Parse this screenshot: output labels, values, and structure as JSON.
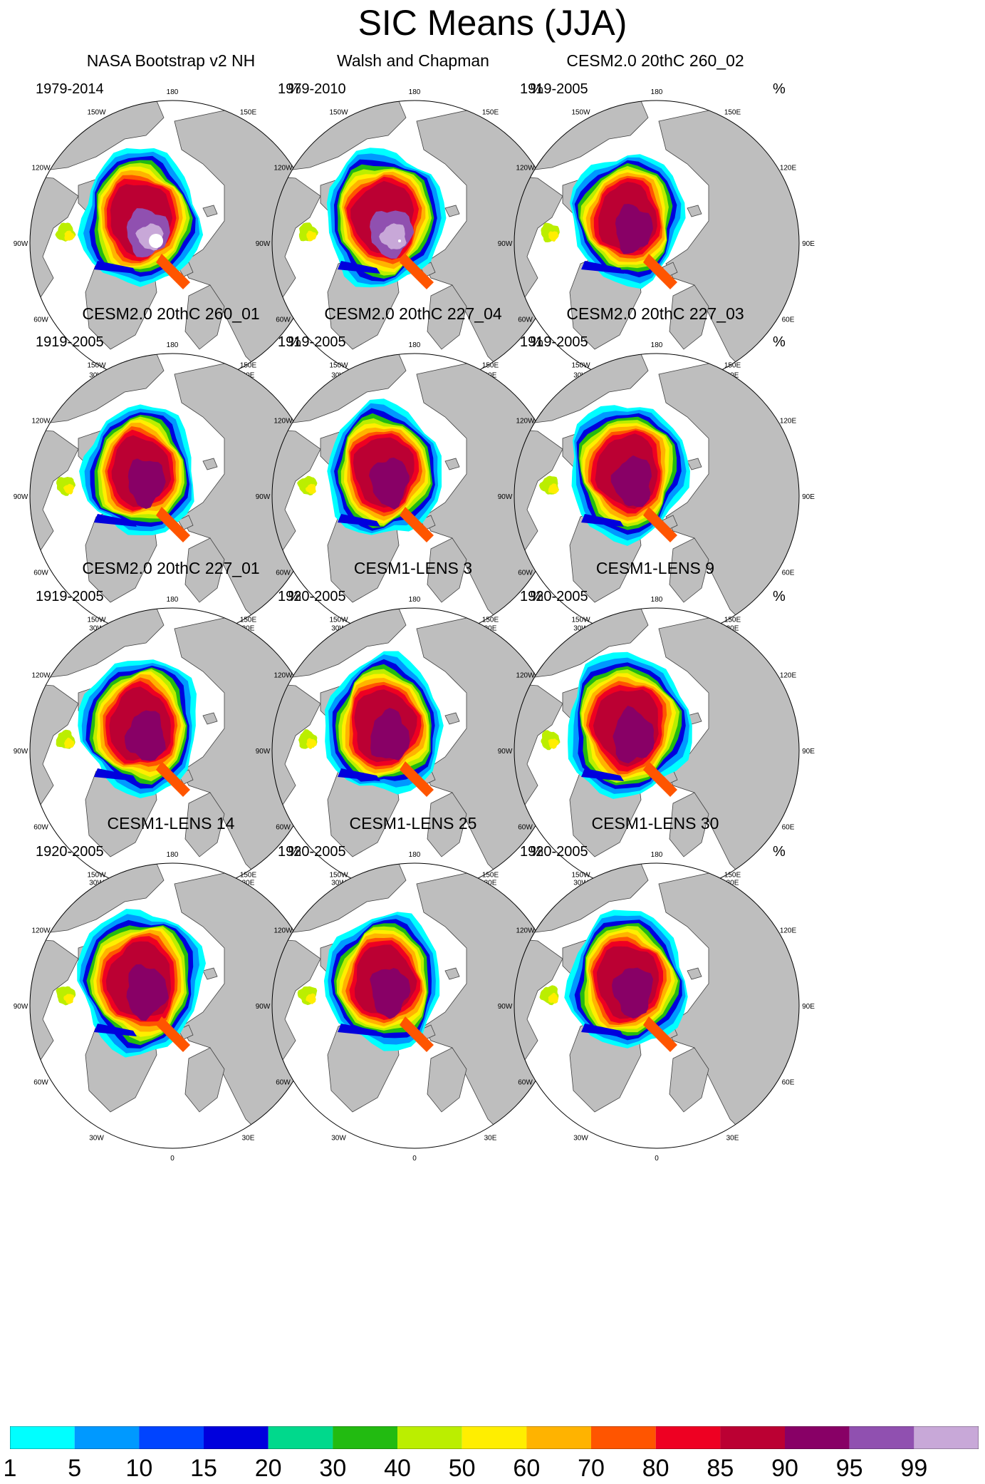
{
  "title": "SIC Means (JJA)",
  "unit": "%",
  "lon_labels": [
    "180",
    "150E",
    "120E",
    "90E",
    "60E",
    "30E",
    "0",
    "30W",
    "60W",
    "90W",
    "120W",
    "150W"
  ],
  "panels": [
    {
      "title": "NASA Bootstrap v2 NH",
      "period": "1979-2014"
    },
    {
      "title": "Walsh and Chapman",
      "period": "1979-2010"
    },
    {
      "title": "CESM2.0 20thC 260_02",
      "period": "1919-2005"
    },
    {
      "title": "CESM2.0 20thC 260_01",
      "period": "1919-2005"
    },
    {
      "title": "CESM2.0 20thC 227_04",
      "period": "1919-2005"
    },
    {
      "title": "CESM2.0 20thC 227_03",
      "period": "1919-2005"
    },
    {
      "title": "CESM2.0 20thC 227_01",
      "period": "1919-2005"
    },
    {
      "title": "CESM1-LENS 3",
      "period": "1920-2005"
    },
    {
      "title": "CESM1-LENS 9",
      "period": "1920-2005"
    },
    {
      "title": "CESM1-LENS 14",
      "period": "1920-2005"
    },
    {
      "title": "CESM1-LENS 25",
      "period": "1920-2005"
    },
    {
      "title": "CESM1-LENS 30",
      "period": "1920-2005"
    }
  ],
  "colorbar": {
    "labels": [
      "1",
      "5",
      "10",
      "15",
      "20",
      "30",
      "40",
      "50",
      "60",
      "70",
      "80",
      "85",
      "90",
      "95",
      "99"
    ],
    "colors": [
      "#00ffff",
      "#0099ff",
      "#0044ff",
      "#0000dd",
      "#00d98c",
      "#22bb11",
      "#bbee00",
      "#ffee00",
      "#ffb300",
      "#ff5500",
      "#ee0022",
      "#bb0033",
      "#880066",
      "#9050b0",
      "#c8a8d8"
    ]
  },
  "colors": {
    "land": "#bebebe",
    "ocean": "#ffffff",
    "coast": "#404040"
  },
  "chart_data": {
    "type": "heatmap",
    "title": "SIC Means (JJA)",
    "projection": "north polar stereographic",
    "variable": "sea ice concentration",
    "unit": "%",
    "levels": [
      1,
      5,
      10,
      15,
      20,
      30,
      40,
      50,
      60,
      70,
      80,
      85,
      90,
      95,
      99
    ],
    "panels": [
      {
        "title": "NASA Bootstrap v2 NH",
        "period": "1979-2014"
      },
      {
        "title": "Walsh and Chapman",
        "period": "1979-2010"
      },
      {
        "title": "CESM2.0 20thC 260_02",
        "period": "1919-2005"
      },
      {
        "title": "CESM2.0 20thC 260_01",
        "period": "1919-2005"
      },
      {
        "title": "CESM2.0 20thC 227_04",
        "period": "1919-2005"
      },
      {
        "title": "CESM2.0 20thC 227_03",
        "period": "1919-2005"
      },
      {
        "title": "CESM2.0 20thC 227_01",
        "period": "1919-2005"
      },
      {
        "title": "CESM1-LENS 3",
        "period": "1920-2005"
      },
      {
        "title": "CESM1-LENS 9",
        "period": "1920-2005"
      },
      {
        "title": "CESM1-LENS 14",
        "period": "1920-2005"
      },
      {
        "title": "CESM1-LENS 25",
        "period": "1920-2005"
      },
      {
        "title": "CESM1-LENS 30",
        "period": "1920-2005"
      }
    ]
  }
}
